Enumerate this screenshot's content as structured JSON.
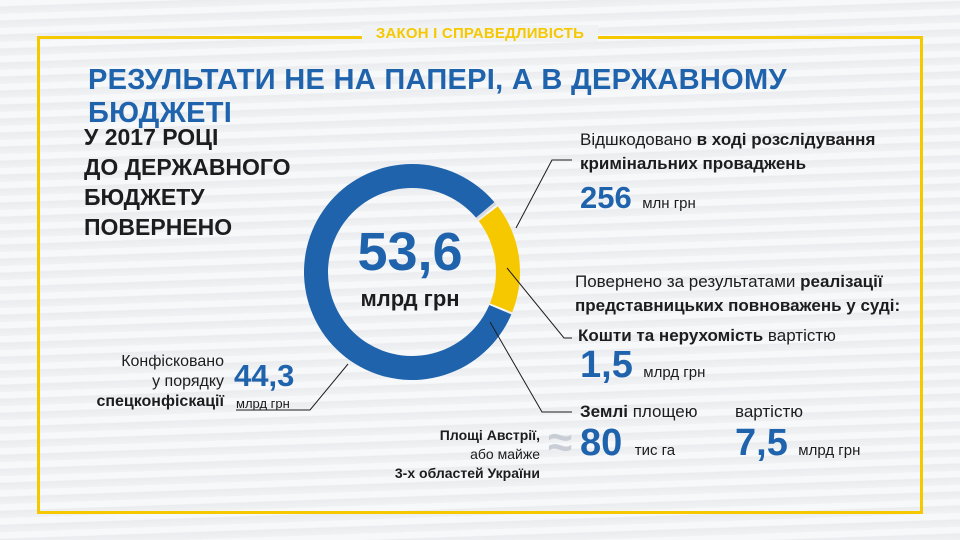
{
  "tag": "ЗАКОН І СПРАВЕДЛИВІСТЬ",
  "headline": "РЕЗУЛЬТАТИ НЕ НА ПАПЕРІ, А В ДЕРЖАВНОМУ БЮДЖЕТІ",
  "lead": [
    "У 2017 РОЦІ",
    "ДО ДЕРЖАВНОГО",
    "БЮДЖЕТУ",
    "ПОВЕРНЕНО"
  ],
  "center": {
    "value": "53,6",
    "unit": "млрд грн"
  },
  "criminal": {
    "line1_pre": "Відшкодовано ",
    "line1_bold": "в ході розслідування",
    "line2_bold": "кримінальних проваджень",
    "value": "256",
    "unit": "млн грн"
  },
  "representation": {
    "line1_pre": "Повернено за результатами ",
    "line1_bold": "реалізації",
    "line2_bold": "представницьких повноважень у суді:",
    "funds_bold": "Кошти та нерухомість",
    "funds_rest": " вартістю",
    "funds_value": "1,5",
    "funds_unit": "млрд грн",
    "land_bold": "Землі",
    "land_rest": " площею",
    "land_value": "80",
    "land_unit": "тис га",
    "cost_label": "вартістю",
    "cost_value": "7,5",
    "cost_unit": "млрд грн"
  },
  "austria": [
    "Площі Австрії,",
    "або майже",
    "3-х областей України"
  ],
  "approx_symbol": "≈",
  "confiscation": {
    "lines": [
      "Конфісковано",
      "у порядку"
    ],
    "bold": "спецконфіскації",
    "value": "44,3",
    "unit": "млрд грн"
  },
  "colors": {
    "blue": "#1f63ad",
    "yellow": "#f5c800",
    "grey": "#d6d9de"
  },
  "chart_data": {
    "type": "pie",
    "variant": "donut",
    "total": 53.6,
    "unit": "млрд грн",
    "series": [
      {
        "name": "Конфісковано у порядку спецконфіскації",
        "value": 44.3,
        "color": "#1f63ad"
      },
      {
        "name": "Відшкодовано в ході розслідування кримінальних проваджень",
        "value": 0.256,
        "color": "#d6d9de"
      },
      {
        "name": "Повернено за результатами реалізації представницьких повноважень у суді",
        "value": 9.0,
        "color": "#f5c800"
      }
    ]
  }
}
